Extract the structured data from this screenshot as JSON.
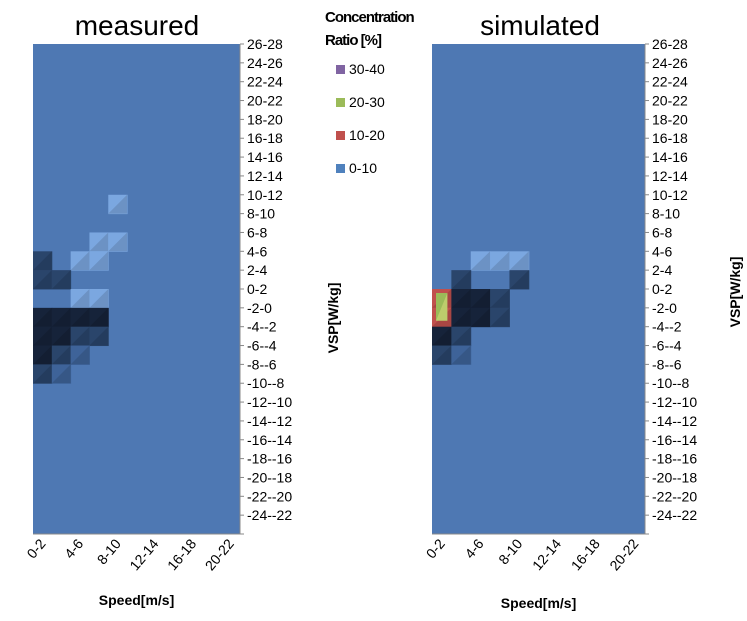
{
  "chart_data": [
    {
      "type": "heatmap",
      "id": "measured",
      "title": "measured",
      "xlabel": "Speed[m/s]",
      "ylabel": "VSP[W/kg]",
      "x_tick_labels": [
        "0-2",
        "4-6",
        "8-10",
        "12-14",
        "16-18",
        "20-22"
      ],
      "y_categories": [
        "26-28",
        "24-26",
        "22-24",
        "20-22",
        "18-20",
        "16-18",
        "14-16",
        "12-14",
        "10-12",
        "8-10",
        "6-8",
        "4-6",
        "2-4",
        "0-2",
        "-2-0",
        "-4--2",
        "-6--4",
        "-8--6",
        "-10--8",
        "-12--10",
        "-14--12",
        "-16--14",
        "-18--16",
        "-20--18",
        "-22--20",
        "-24--22"
      ],
      "hot_spots": [
        {
          "y": "10-12",
          "x": 4,
          "level": "light"
        },
        {
          "y": "6-8",
          "x": 3,
          "level": "light"
        },
        {
          "y": "6-8",
          "x": 4,
          "level": "light"
        },
        {
          "y": "4-6",
          "x": 2,
          "level": "light"
        },
        {
          "y": "4-6",
          "x": 3,
          "level": "light"
        },
        {
          "y": "4-6",
          "x": 0,
          "level": "dark"
        },
        {
          "y": "2-4",
          "x": 0,
          "level": "dark"
        },
        {
          "y": "2-4",
          "x": 1,
          "level": "dark"
        },
        {
          "y": "0-2",
          "x": 2,
          "level": "light"
        },
        {
          "y": "0-2",
          "x": 3,
          "level": "light"
        },
        {
          "y": "-2-0",
          "x": 0,
          "level": "darkest"
        },
        {
          "y": "-2-0",
          "x": 1,
          "level": "darkest"
        },
        {
          "y": "-2-0",
          "x": 2,
          "level": "darkest"
        },
        {
          "y": "-2-0",
          "x": 3,
          "level": "darkest"
        },
        {
          "y": "-4--2",
          "x": 0,
          "level": "darkest"
        },
        {
          "y": "-4--2",
          "x": 1,
          "level": "darkest"
        },
        {
          "y": "-4--2",
          "x": 2,
          "level": "dark"
        },
        {
          "y": "-4--2",
          "x": 3,
          "level": "dark"
        },
        {
          "y": "-6--4",
          "x": 0,
          "level": "darkest"
        },
        {
          "y": "-6--4",
          "x": 1,
          "level": "dark"
        },
        {
          "y": "-6--4",
          "x": 2,
          "level": "medium"
        },
        {
          "y": "-8--6",
          "x": 0,
          "level": "dark"
        },
        {
          "y": "-8--6",
          "x": 1,
          "level": "medium"
        }
      ]
    },
    {
      "type": "heatmap",
      "id": "simulated",
      "title": "simulated",
      "xlabel": "Speed[m/s]",
      "ylabel": "VSP[W/kg]",
      "x_tick_labels": [
        "0-2",
        "4-6",
        "8-10",
        "12-14",
        "16-18",
        "20-22"
      ],
      "y_categories": [
        "26-28",
        "24-26",
        "22-24",
        "20-22",
        "18-20",
        "16-18",
        "14-16",
        "12-14",
        "10-12",
        "8-10",
        "6-8",
        "4-6",
        "2-4",
        "0-2",
        "-2-0",
        "-4--2",
        "-6--4",
        "-8--6",
        "-10--8",
        "-12--10",
        "-14--12",
        "-16--14",
        "-18--16",
        "-20--18",
        "-22--20",
        "-24--22"
      ],
      "hot_spots": [
        {
          "y": "4-6",
          "x": 2,
          "level": "light"
        },
        {
          "y": "4-6",
          "x": 3,
          "level": "light"
        },
        {
          "y": "4-6",
          "x": 4,
          "level": "light"
        },
        {
          "y": "2-4",
          "x": 1,
          "level": "dark"
        },
        {
          "y": "2-4",
          "x": 4,
          "level": "dark"
        },
        {
          "y": "0-2",
          "x": 0,
          "level": "red"
        },
        {
          "y": "-2-0",
          "x": 0,
          "level": "red"
        },
        {
          "y": "0-2",
          "x": 1,
          "level": "darkest"
        },
        {
          "y": "0-2",
          "x": 2,
          "level": "darkest"
        },
        {
          "y": "0-2",
          "x": 3,
          "level": "dark"
        },
        {
          "y": "-2-0",
          "x": 1,
          "level": "darkest"
        },
        {
          "y": "-2-0",
          "x": 2,
          "level": "darkest"
        },
        {
          "y": "-2-0",
          "x": 3,
          "level": "dark"
        },
        {
          "y": "-4--2",
          "x": 0,
          "level": "darkest"
        },
        {
          "y": "-4--2",
          "x": 1,
          "level": "dark"
        },
        {
          "y": "-6--4",
          "x": 0,
          "level": "dark"
        },
        {
          "y": "-6--4",
          "x": 1,
          "level": "medium"
        }
      ],
      "marker": {
        "y": [
          "0-2",
          "-2-0"
        ],
        "x": 0,
        "level": "green"
      }
    }
  ],
  "legend": {
    "title_line1": "Concentration",
    "title_line2": "Ratio [%]",
    "items": [
      {
        "label": "30-40",
        "color": "#8064a2"
      },
      {
        "label": "20-30",
        "color": "#9bbb59"
      },
      {
        "label": "10-20",
        "color": "#c0504d"
      },
      {
        "label": "0-10",
        "color": "#4f81bd"
      }
    ]
  },
  "colors": {
    "base": "#4e78b3",
    "light": "#7ba7e0",
    "medium": "#3e6399",
    "dark": "#2a456b",
    "darkest": "#16233a",
    "red": "#c0504d",
    "green": "#9bbb59",
    "axis": "#888888"
  }
}
